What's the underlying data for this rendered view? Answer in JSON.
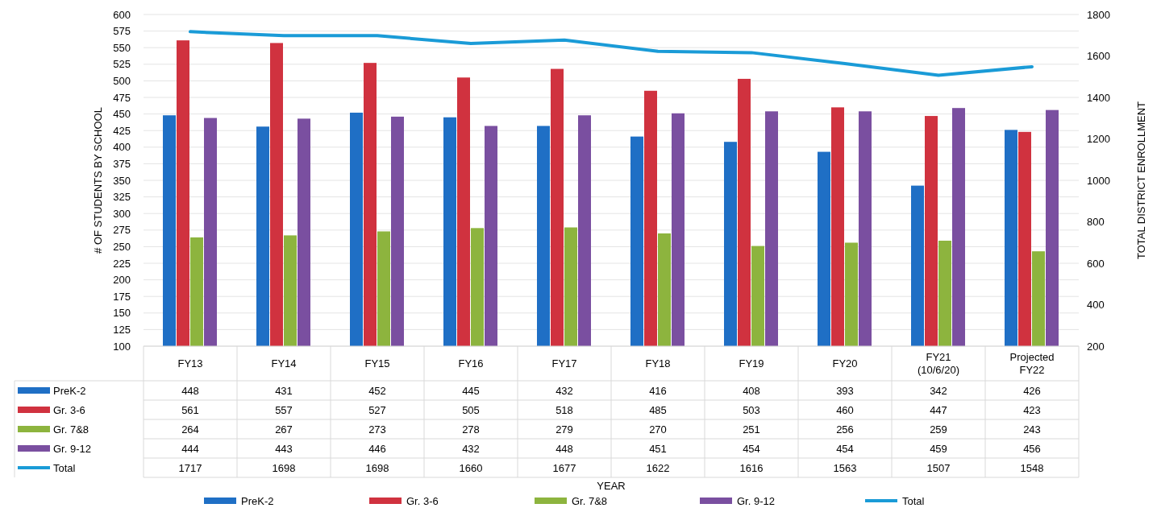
{
  "chart_data": {
    "type": "bar",
    "annotations": [
      "YEAR"
    ],
    "ylabel": "# OF STUDENTS BY SCHOOL",
    "y2label": "TOTAL DISTRICT ENROLLMENT",
    "categories": [
      "FY13",
      "FY14",
      "FY15",
      "FY16",
      "FY17",
      "FY18",
      "FY19",
      "FY20",
      "FY21 (10/6/20)",
      "Projected FY22"
    ],
    "series": [
      {
        "name": "PreK-2",
        "color": "#1f6fc5",
        "values": [
          448,
          431,
          452,
          445,
          432,
          416,
          408,
          393,
          342,
          426
        ]
      },
      {
        "name": "Gr. 3-6",
        "color": "#d0323f",
        "values": [
          561,
          557,
          527,
          505,
          518,
          485,
          503,
          460,
          447,
          423
        ]
      },
      {
        "name": "Gr. 7&8",
        "color": "#8db43e",
        "values": [
          264,
          267,
          273,
          278,
          279,
          270,
          251,
          256,
          259,
          243
        ]
      },
      {
        "name": "Gr. 9-12",
        "color": "#7a4fa0",
        "values": [
          444,
          443,
          446,
          432,
          448,
          451,
          454,
          454,
          459,
          456
        ]
      },
      {
        "name": "Total",
        "type": "line",
        "axis": "y2",
        "color": "#1a9bd7",
        "values": [
          1717,
          1698,
          1698,
          1660,
          1677,
          1622,
          1616,
          1563,
          1507,
          1548
        ]
      }
    ],
    "ylim": [
      100,
      600
    ],
    "yticks": [
      100,
      125,
      150,
      175,
      200,
      225,
      250,
      275,
      300,
      325,
      350,
      375,
      400,
      425,
      450,
      475,
      500,
      525,
      550,
      575,
      600
    ],
    "y2lim": [
      200,
      1800
    ],
    "y2ticks": [
      200,
      400,
      600,
      800,
      1000,
      1200,
      1400,
      1600,
      1800
    ],
    "grid": "y",
    "legend": "bottom",
    "data_labels": true,
    "marker": "none",
    "line_style": "solid"
  }
}
